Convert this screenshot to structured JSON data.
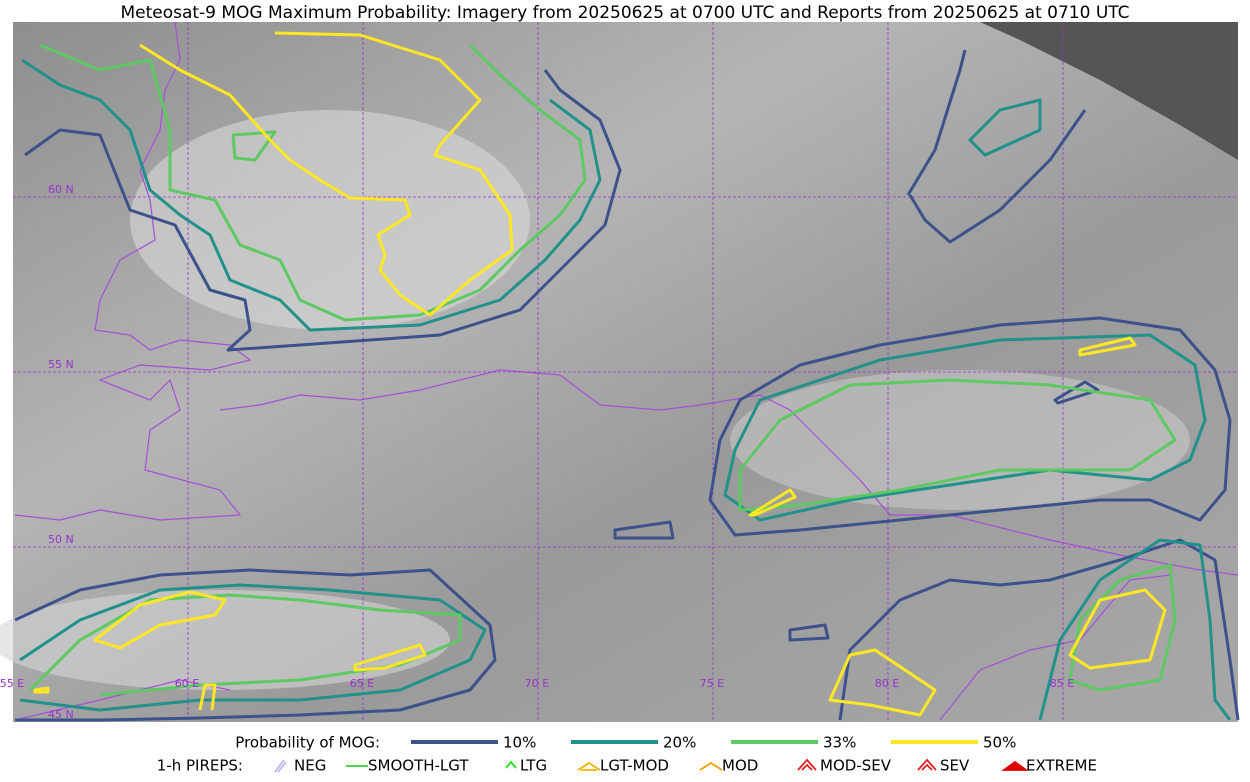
{
  "title": "Meteosat-9 MOG Maximum Probability: Imagery from 20250625 at 0700 UTC and Reports from 20250625 at 0710 UTC",
  "grid_labels": {
    "lat": [
      "60 N",
      "55 N",
      "50 N",
      "45 N"
    ],
    "lon": [
      "55 E",
      "60 E",
      "65 E",
      "70 E",
      "75 E",
      "80 E",
      "85 E"
    ]
  },
  "legend": {
    "probability": {
      "label": "Probability of MOG:",
      "items": [
        {
          "label": "10%",
          "color": "#3b528b"
        },
        {
          "label": "20%",
          "color": "#21918c"
        },
        {
          "label": "33%",
          "color": "#5ec962"
        },
        {
          "label": "50%",
          "color": "#fde725"
        }
      ]
    },
    "pireps": {
      "label": "1-h PIREPS:",
      "items": [
        {
          "label": "NEG",
          "color": "#b8b8f0"
        },
        {
          "label": "SMOOTH-LGT",
          "color": "#33cc33"
        },
        {
          "label": "LTG",
          "color": "#22dd22"
        },
        {
          "label": "LGT-MOD",
          "color": "#f5b000"
        },
        {
          "label": "MOD",
          "color": "#f5a000"
        },
        {
          "label": "MOD-SEV",
          "color": "#e02020"
        },
        {
          "label": "SEV",
          "color": "#e02020"
        },
        {
          "label": "EXTREME",
          "color": "#e00000"
        }
      ]
    }
  }
}
